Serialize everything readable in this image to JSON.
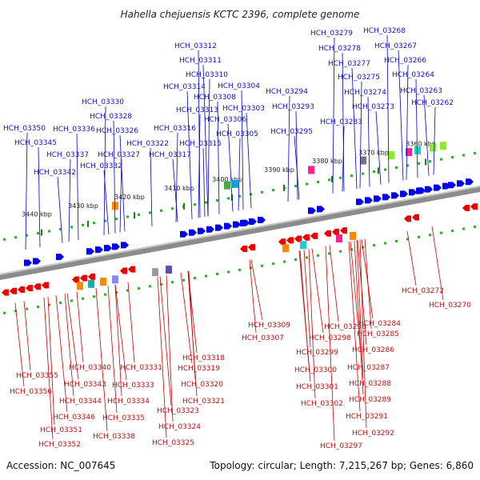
{
  "title": "Hahella chejuensis KCTC 2396, complete genome",
  "footer": {
    "accession": "Accession: NC_007645",
    "summary": "Topology: circular; Length: 7,215,267 bp; Genes: 6,860"
  },
  "colors": {
    "forward": "#0000ee",
    "reverse": "#ee0000",
    "backbone": "#888888",
    "dots": "#33aa33"
  },
  "ticks": [
    "3440 kbp",
    "3430 kbp",
    "3420 kbp",
    "3410 kbp",
    "3400 kbp",
    "3390 kbp",
    "3380 kbp",
    "3370 kbp",
    "3360 kbp"
  ],
  "forward_labels": [
    "HCH_03350",
    "HCH_03345",
    "HCH_03342",
    "HCH_03337",
    "HCH_03336",
    "HCH_03332",
    "HCH_03330",
    "HCH_03328",
    "HCH_03326",
    "HCH_03327",
    "HCH_03322",
    "HCH_03317",
    "HCH_03316",
    "HCH_03315",
    "HCH_03314",
    "HCH_03313",
    "HCH_03312",
    "HCH_03311",
    "HCH_03310",
    "HCH_03308",
    "HCH_03306",
    "HCH_03305",
    "HCH_03304",
    "HCH_03303",
    "HCH_03294",
    "HCH_03293",
    "HCH_03295",
    "HCH_03279",
    "HCH_03278",
    "HCH_03277",
    "HCH_03275",
    "HCH_03274",
    "HCH_03273",
    "HCH_03283",
    "HCH_03268",
    "HCH_03267",
    "HCH_03266",
    "HCH_03264",
    "HCH_03263",
    "HCH_03262"
  ],
  "reverse_labels": [
    "HCH_03355",
    "HCH_03356",
    "HCH_03343",
    "HCH_03340",
    "HCH_03344",
    "HCH_03346",
    "HCH_03351",
    "HCH_03352",
    "HCH_03333",
    "HCH_03334",
    "HCH_03335",
    "HCH_03338",
    "HCH_03331",
    "HCH_03318",
    "HCH_03319",
    "HCH_03320",
    "HCH_03321",
    "HCH_03323",
    "HCH_03324",
    "HCH_03325",
    "HCH_03309",
    "HCH_03307",
    "HCH_03296",
    "HCH_03298",
    "HCH_03299",
    "HCH_03300",
    "HCH_03301",
    "HCH_03302",
    "HCH_03297",
    "HCH_03284",
    "HCH_03285",
    "HCH_03286",
    "HCH_03287",
    "HCH_03288",
    "HCH_03289",
    "HCH_03291",
    "HCH_03292",
    "HCH_03272",
    "HCH_03270"
  ]
}
